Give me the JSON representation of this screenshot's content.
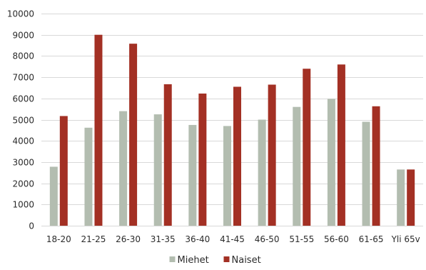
{
  "chart_data": {
    "type": "bar",
    "categories": [
      "18-20",
      "21-25",
      "26-30",
      "31-35",
      "36-40",
      "41-45",
      "46-50",
      "51-55",
      "56-60",
      "61-65",
      "Yli 65v"
    ],
    "series": [
      {
        "name": "Miehet",
        "color": "#b3bdb0",
        "values": [
          2780,
          4620,
          5400,
          5250,
          4750,
          4700,
          5000,
          5600,
          5980,
          4900,
          2650
        ]
      },
      {
        "name": "Naiset",
        "color": "#a33024",
        "values": [
          5170,
          9000,
          8580,
          6670,
          6230,
          6550,
          6650,
          7400,
          7600,
          5630,
          2650
        ]
      }
    ],
    "ylim": [
      0,
      10000
    ],
    "yticks": [
      "0",
      "1000",
      "2000",
      "3000",
      "4000",
      "5000",
      "6000",
      "7000",
      "8000",
      "9000",
      "10000"
    ],
    "grid": true,
    "legend_position": "bottom"
  }
}
